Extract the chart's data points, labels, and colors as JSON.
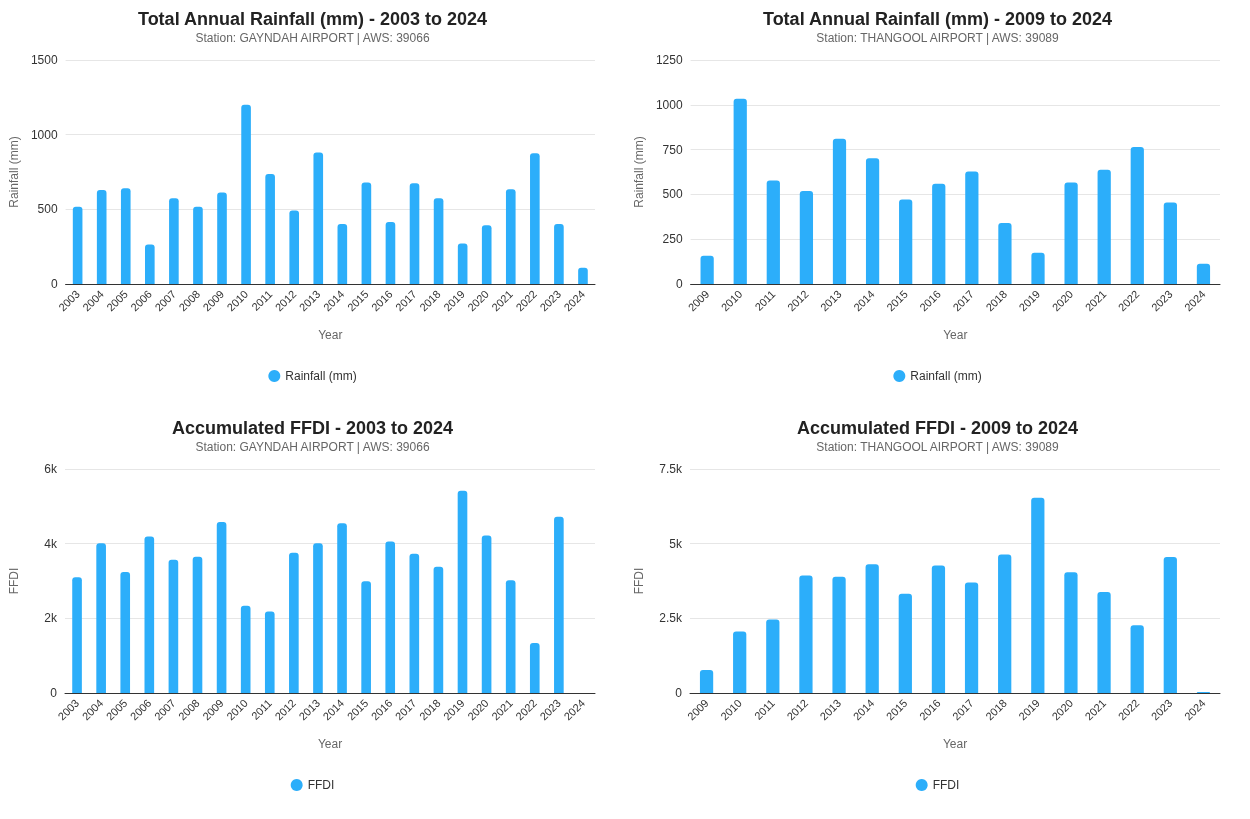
{
  "chart_data": [
    {
      "type": "bar",
      "title": "Total Annual Rainfall (mm) - 2003 to 2024",
      "subtitle": "Station: GAYNDAH AIRPORT | AWS: 39066",
      "xlabel": "Year",
      "ylabel": "Rainfall (mm)",
      "categories": [
        "2003",
        "2004",
        "2005",
        "2006",
        "2007",
        "2008",
        "2009",
        "2010",
        "2011",
        "2012",
        "2013",
        "2014",
        "2015",
        "2016",
        "2017",
        "2018",
        "2019",
        "2020",
        "2021",
        "2022",
        "2023",
        "2024"
      ],
      "series": [
        {
          "name": "Rainfall (mm)",
          "color": "#2caefa",
          "values": [
            518,
            629,
            642,
            265,
            575,
            518,
            613,
            1201,
            737,
            492,
            881,
            402,
            680,
            415,
            675,
            575,
            271,
            394,
            634,
            876,
            402,
            108
          ]
        }
      ],
      "ylim": [
        0,
        1500
      ],
      "yticks": [
        0,
        500,
        1000,
        1500
      ],
      "grid": "y",
      "legend": "bottom"
    },
    {
      "type": "bar",
      "title": "Total Annual Rainfall (mm) - 2009 to 2024",
      "subtitle": "Station: THANGOOL AIRPORT | AWS: 39089",
      "xlabel": "Year",
      "ylabel": "Rainfall (mm)",
      "categories": [
        "2009",
        "2010",
        "2011",
        "2012",
        "2013",
        "2014",
        "2015",
        "2016",
        "2017",
        "2018",
        "2019",
        "2020",
        "2021",
        "2022",
        "2023",
        "2024"
      ],
      "series": [
        {
          "name": "Rainfall (mm)",
          "color": "#2caefa",
          "values": [
            157,
            1034,
            577,
            519,
            811,
            702,
            472,
            560,
            628,
            340,
            174,
            566,
            638,
            764,
            455,
            113
          ]
        }
      ],
      "ylim": [
        0,
        1250
      ],
      "yticks": [
        0,
        250,
        500,
        750,
        1000,
        1250
      ],
      "grid": "y",
      "legend": "bottom"
    },
    {
      "type": "bar",
      "title": "Accumulated FFDI - 2003 to 2024",
      "subtitle": "Station: GAYNDAH AIRPORT | AWS: 39066",
      "xlabel": "Year",
      "ylabel": "FFDI",
      "categories": [
        "2003",
        "2004",
        "2005",
        "2006",
        "2007",
        "2008",
        "2009",
        "2010",
        "2011",
        "2012",
        "2013",
        "2014",
        "2015",
        "2016",
        "2017",
        "2018",
        "2019",
        "2020",
        "2021",
        "2022",
        "2023",
        "2024"
      ],
      "series": [
        {
          "name": "FFDI",
          "color": "#2caefa",
          "values": [
            3100,
            4010,
            3240,
            4190,
            3570,
            3650,
            4580,
            2340,
            2180,
            3760,
            4010,
            4550,
            2990,
            4060,
            3730,
            3380,
            5420,
            4220,
            3020,
            1340,
            4720,
            null
          ]
        }
      ],
      "ylim": [
        0,
        6000
      ],
      "yticks": [
        0,
        {
          "value": 2000,
          "label": "2k"
        },
        {
          "value": 4000,
          "label": "4k"
        },
        {
          "value": 6000,
          "label": "6k"
        }
      ],
      "grid": "y",
      "legend": "bottom"
    },
    {
      "type": "bar",
      "title": "Accumulated FFDI - 2009 to 2024",
      "subtitle": "Station: THANGOOL AIRPORT | AWS: 39089",
      "xlabel": "Year",
      "ylabel": "FFDI",
      "categories": [
        "2009",
        "2010",
        "2011",
        "2012",
        "2013",
        "2014",
        "2015",
        "2016",
        "2017",
        "2018",
        "2019",
        "2020",
        "2021",
        "2022",
        "2023",
        "2024"
      ],
      "series": [
        {
          "name": "FFDI",
          "color": "#2caefa",
          "values": [
            773,
            2060,
            2460,
            3930,
            3890,
            4310,
            3320,
            4270,
            3700,
            4640,
            6540,
            4040,
            3380,
            2270,
            4550,
            30
          ]
        }
      ],
      "ylim": [
        0,
        7500
      ],
      "yticks": [
        0,
        {
          "value": 2500,
          "label": "2.5k"
        },
        {
          "value": 5000,
          "label": "5k"
        },
        {
          "value": 7500,
          "label": "7.5k"
        }
      ],
      "grid": "y",
      "legend": "bottom"
    }
  ]
}
